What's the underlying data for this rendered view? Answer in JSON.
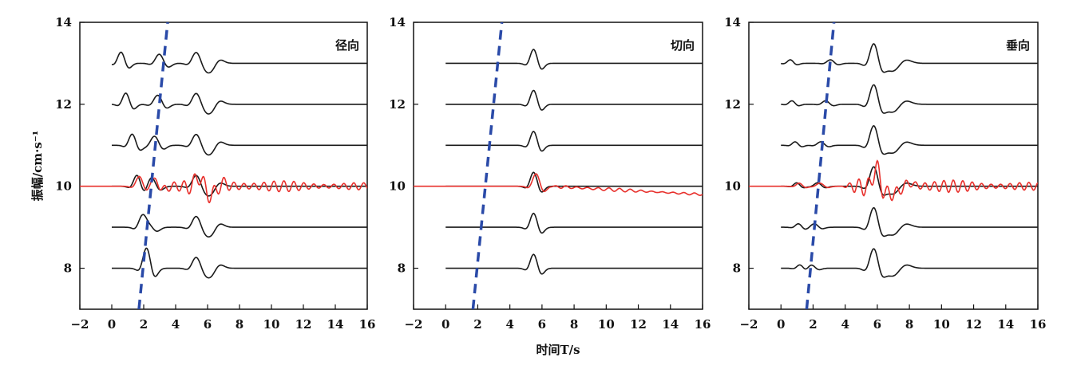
{
  "chart_data": {
    "type": "line",
    "xlabel": "时间T/s",
    "ylabel": "振幅/cm·s⁻¹",
    "xlim": [
      -2,
      16
    ],
    "ylim": [
      7,
      14
    ],
    "x_ticks": [
      -2,
      0,
      2,
      4,
      6,
      8,
      10,
      12,
      14,
      16
    ],
    "x_tick_labels": [
      "−2",
      "0",
      "2",
      "4",
      "6",
      "8",
      "10",
      "12",
      "14",
      "16"
    ],
    "y_ticks": [
      8,
      10,
      12,
      14
    ],
    "y_tick_labels": [
      "8",
      "10",
      "12",
      "14"
    ],
    "colors": {
      "traces": "#1a1a1a",
      "highlight": "#e8302c",
      "moveout": "#2a4aa8"
    },
    "panels": [
      {
        "title": "径向",
        "moveout_line": {
          "x": [
            1.7,
            3.5
          ],
          "y": [
            7,
            14
          ]
        },
        "trace_offsets": [
          13,
          12,
          11,
          10,
          9,
          8
        ],
        "pulses": [
          {
            "t0": [
              0.6,
              0.9,
              1.3,
              1.6,
              1.9,
              2.2
            ],
            "amp": 0.32,
            "w": 0.35
          },
          {
            "t0": [
              3.0,
              2.9,
              2.7,
              2.5,
              2.3,
              2.2
            ],
            "amp": 0.26,
            "w": 0.4
          },
          {
            "t0": [
              5.3,
              5.3,
              5.3,
              5.3,
              5.3,
              5.3
            ],
            "amp": 0.3,
            "w": 0.4
          },
          {
            "t0": [
              6.2,
              6.2,
              6.2,
              6.2,
              6.2,
              6.2
            ],
            "amp": -0.22,
            "w": 0.45
          }
        ],
        "highlight": {
          "offset": 10,
          "noise_start": 2.6,
          "noise_amp": 0.28,
          "noise_freq": 1.6
        }
      },
      {
        "title": "切向",
        "moveout_line": {
          "x": [
            1.7,
            3.5
          ],
          "y": [
            7,
            14
          ]
        },
        "trace_offsets": [
          13,
          12,
          11,
          10,
          9,
          8
        ],
        "pulses": [
          {
            "t0": [
              5.5,
              5.5,
              5.5,
              5.5,
              5.5,
              5.5
            ],
            "amp": 0.4,
            "w": 0.35
          }
        ],
        "highlight": {
          "offset": 10,
          "noise_start": 6.5,
          "noise_amp": 0.06,
          "noise_freq": 1.5,
          "drift_end": -0.2
        }
      },
      {
        "title": "垂向",
        "moveout_line": {
          "x": [
            1.6,
            3.3
          ],
          "y": [
            7,
            14
          ]
        },
        "trace_offsets": [
          13,
          12,
          11,
          10,
          9,
          8
        ],
        "pulses": [
          {
            "t0": [
              0.6,
              0.7,
              0.9,
              1.0,
              1.1,
              1.2
            ],
            "amp": 0.1,
            "w": 0.3
          },
          {
            "t0": [
              3.1,
              2.8,
              2.5,
              2.3,
              2.1,
              1.9
            ],
            "amp": 0.1,
            "w": 0.35
          },
          {
            "t0": [
              5.8,
              5.8,
              5.8,
              5.8,
              5.8,
              5.8
            ],
            "amp": 0.55,
            "w": 0.4
          },
          {
            "t0": [
              7.0,
              7.0,
              7.0,
              7.0,
              7.0,
              7.0
            ],
            "amp": -0.22,
            "w": 0.6
          }
        ],
        "highlight": {
          "offset": 10,
          "noise_start": 3.8,
          "noise_amp": 0.28,
          "noise_freq": 1.7
        }
      }
    ]
  }
}
